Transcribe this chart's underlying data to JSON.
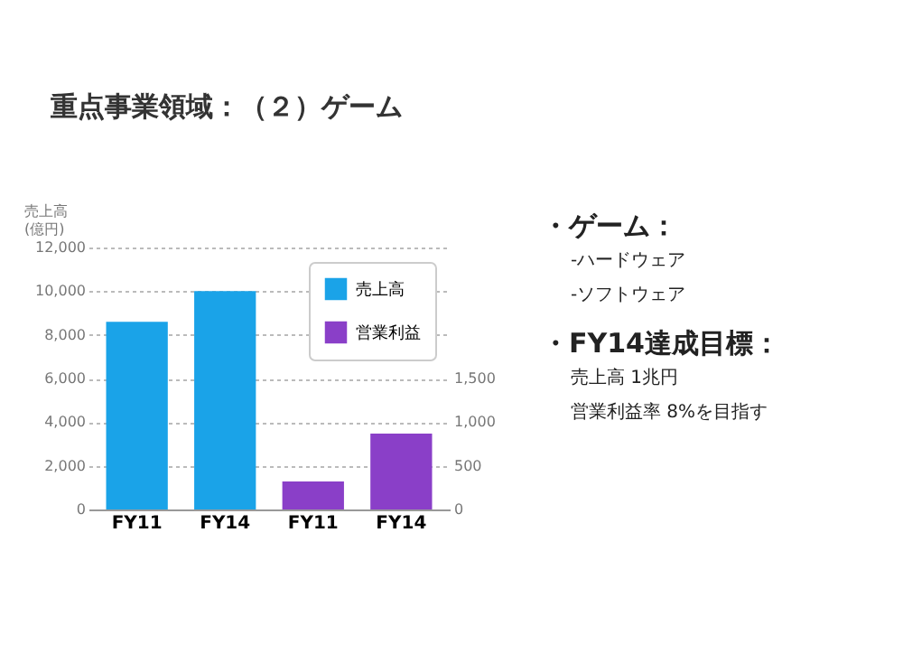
{
  "chart_data": {
    "type": "bar",
    "title": "重点事業領域：（２）ゲーム",
    "ylabel": "売上高\n(億円)",
    "categories": [
      "FY11",
      "FY14",
      "FY11",
      "FY14"
    ],
    "series": [
      {
        "name": "売上高",
        "color": "#1aa3e8",
        "values": [
          8600,
          10000,
          null,
          null
        ]
      },
      {
        "name": "営業利益",
        "color": "#8a3fc8",
        "axis": "y2",
        "values": [
          null,
          null,
          320,
          870
        ]
      }
    ],
    "ylim": [
      0,
      12000
    ],
    "yticks": [
      0,
      {
        "value": 2000,
        "label": "2,000"
      },
      {
        "value": 4000,
        "label": "4,000"
      },
      {
        "value": 6000,
        "label": "6,000"
      },
      {
        "value": 8000,
        "label": "8,000"
      },
      {
        "value": 10000,
        "label": "10,000"
      },
      {
        "value": 12000,
        "label": "12,000"
      }
    ],
    "y2lim": [
      0,
      3000
    ],
    "y2ticks": [
      0,
      500,
      {
        "value": 1000,
        "label": "1,000"
      },
      {
        "value": 1500,
        "label": "1,500"
      }
    ],
    "grid": "y",
    "legend": "top right",
    "annotations": [
      "・ゲーム：",
      "-ハードウェア",
      "-ソフトウェア",
      "・FY14達成目標：",
      "売上高 1兆円",
      "営業利益率 8%を目指す"
    ]
  }
}
